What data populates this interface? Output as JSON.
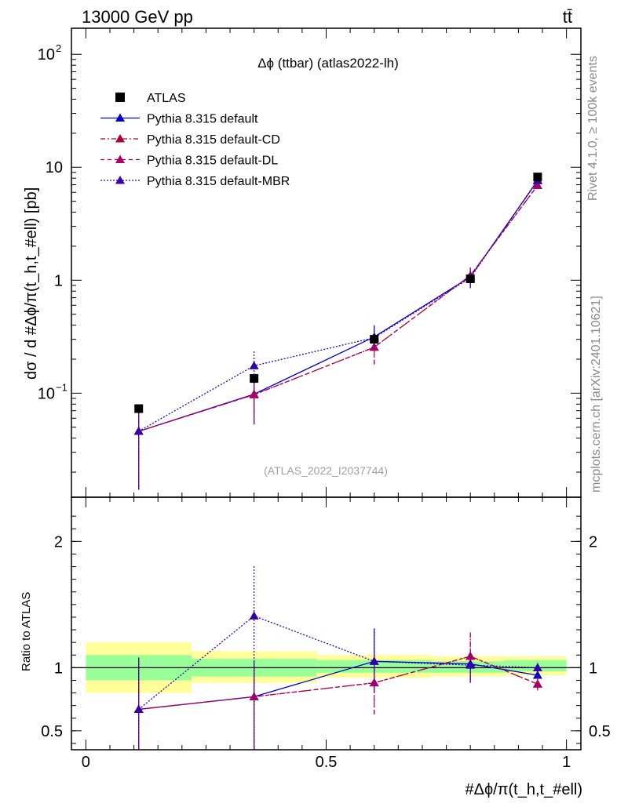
{
  "header": {
    "energy_label": "13000 GeV pp",
    "process_label": "tt̄"
  },
  "side": {
    "rivet_label": "Rivet 4.1.0, ≥ 100k events",
    "mcplots_label": "mcplots.cern.ch [arXiv:2401.10621]"
  },
  "chart_data": {
    "type": "line",
    "title": "Δϕ (ttbar) (atlas2022-lh)",
    "watermark": "(ATLAS_2022_I2037744)",
    "ylabel_main": "dσ / d #Δϕ/π(t_h,t_#ell) [pb]",
    "ylabel_ratio": "Ratio to ATLAS",
    "xlabel": "#Δϕ/π(t_h,t_#ell)",
    "xlim": [
      -0.03,
      1.03
    ],
    "ylim_main": [
      0.012,
      170
    ],
    "ylim_ratio": [
      0.35,
      2.35
    ],
    "yscale_main": "log",
    "x_ticks": [
      {
        "value": 0,
        "label": "0"
      },
      {
        "value": 0.5,
        "label": "0.5"
      },
      {
        "value": 1,
        "label": "1"
      }
    ],
    "y_ticks_main": [
      {
        "value": 0.1,
        "base": "10",
        "exp": "−1"
      },
      {
        "value": 1,
        "base": "1",
        "exp": ""
      },
      {
        "value": 10,
        "base": "10",
        "exp": ""
      },
      {
        "value": 100,
        "base": "10",
        "exp": "2"
      }
    ],
    "y_ticks_ratio": [
      {
        "value": 0.5,
        "label": "0.5"
      },
      {
        "value": 1,
        "label": "1"
      },
      {
        "value": 2,
        "label": "2"
      }
    ],
    "x_edges": [
      0,
      0.22,
      0.48,
      0.72,
      0.87,
      1.0
    ],
    "x": [
      0.11,
      0.35,
      0.6,
      0.8,
      0.94
    ],
    "data": {
      "name": "ATLAS",
      "values": [
        0.073,
        0.135,
        0.3,
        1.03,
        8.2
      ],
      "band_inner": [
        [
          0.9,
          1.1
        ],
        [
          0.93,
          1.07
        ],
        [
          0.96,
          1.06
        ],
        [
          0.96,
          1.05
        ],
        [
          0.97,
          1.06
        ]
      ],
      "band_outer": [
        [
          0.8,
          1.2
        ],
        [
          0.88,
          1.13
        ],
        [
          0.92,
          1.1
        ],
        [
          0.93,
          1.09
        ],
        [
          0.94,
          1.09
        ]
      ]
    },
    "series": [
      {
        "name": "Pythia 8.315 default",
        "color": "#0000cc",
        "dash": "",
        "values": [
          0.046,
          0.098,
          0.315,
          1.07,
          7.6
        ],
        "err_low": [
          0.014,
          0.053,
          0.24,
          0.86,
          7.0
        ],
        "err_high": [
          0.075,
          0.14,
          0.4,
          1.28,
          8.2
        ],
        "ratio": [
          0.67,
          0.77,
          1.05,
          1.03,
          0.94
        ],
        "ratio_low": [
          0.1,
          0.1,
          0.8,
          0.88,
          0.88
        ],
        "ratio_high": [
          1.08,
          1.05,
          1.31,
          1.13,
          1.0
        ]
      },
      {
        "name": "Pythia 8.315 default-CD",
        "color": "#aa0033",
        "dash": "6,3,2,3",
        "values": [
          0.046,
          0.097,
          0.255,
          1.1,
          6.9
        ],
        "err_low": [
          0.014,
          0.053,
          0.18,
          0.9,
          6.4
        ],
        "err_high": [
          0.075,
          0.14,
          0.33,
          1.3,
          7.4
        ],
        "ratio": [
          0.67,
          0.77,
          0.88,
          1.09,
          0.87
        ],
        "ratio_low": [
          0.1,
          0.1,
          0.63,
          0.9,
          0.82
        ],
        "ratio_high": [
          1.08,
          1.05,
          1.13,
          1.28,
          0.93
        ]
      },
      {
        "name": "Pythia 8.315 default-DL",
        "color": "#aa0066",
        "dash": "5,4",
        "values": [
          0.046,
          0.097,
          0.255,
          1.1,
          6.9
        ],
        "err_low": [
          0.014,
          0.053,
          0.18,
          0.9,
          6.4
        ],
        "err_high": [
          0.075,
          0.14,
          0.33,
          1.3,
          7.4
        ],
        "ratio": [
          0.67,
          0.77,
          0.88,
          1.09,
          0.87
        ],
        "ratio_low": [
          0.1,
          0.1,
          0.63,
          0.9,
          0.82
        ],
        "ratio_high": [
          1.08,
          1.05,
          1.13,
          1.28,
          0.93
        ]
      },
      {
        "name": "Pythia 8.315 default-MBR",
        "color": "#3300aa",
        "dash": "2,2",
        "values": [
          0.046,
          0.175,
          0.31,
          1.05,
          7.7
        ],
        "err_low": [
          0.014,
          0.12,
          0.24,
          0.85,
          7.1
        ],
        "err_high": [
          0.075,
          0.235,
          0.4,
          1.25,
          8.3
        ],
        "ratio": [
          0.67,
          1.41,
          1.05,
          1.02,
          1.0
        ],
        "ratio_low": [
          0.1,
          0.1,
          0.8,
          0.88,
          0.95
        ],
        "ratio_high": [
          1.08,
          1.81,
          1.31,
          1.12,
          1.05
        ]
      }
    ]
  }
}
